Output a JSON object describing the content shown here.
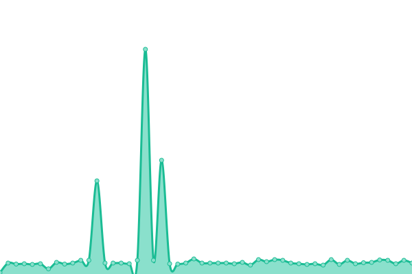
{
  "chart_data": {
    "type": "area",
    "title": "",
    "xlabel": "",
    "ylabel": "",
    "ylim": [
      0,
      400
    ],
    "grid": false,
    "legend": "none",
    "smooth": true,
    "colors": {
      "line": "#1abc94",
      "fill": "#8ae0cc",
      "marker_fill": "#8ae0cc",
      "marker_stroke": "#1abc94"
    },
    "values": [
      2,
      16,
      14.5,
      15,
      14,
      15,
      7.5,
      17,
      14.5,
      16,
      20,
      20,
      136,
      16,
      16,
      16,
      15,
      20,
      328,
      20,
      166,
      15,
      14.5,
      16,
      22,
      16,
      16,
      16,
      16,
      15,
      17,
      13,
      21,
      18,
      21,
      20,
      16,
      15,
      14,
      15,
      13,
      21,
      14,
      20,
      15,
      16.5,
      17,
      20.5,
      20,
      15,
      20,
      16
    ]
  }
}
